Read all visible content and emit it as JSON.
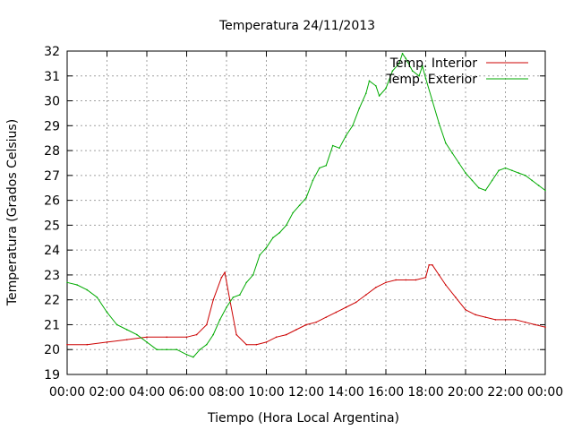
{
  "chart_data": {
    "type": "line",
    "title": "Temperatura 24/11/2013",
    "xlabel": "Tiempo (Hora Local Argentina)",
    "ylabel": "Temperatura (Grados Celsius)",
    "xlim": [
      "00:00",
      "24:00"
    ],
    "ylim": [
      19,
      32
    ],
    "grid": true,
    "legend_position": "top-right",
    "x_ticks": [
      "00:00",
      "02:00",
      "04:00",
      "06:00",
      "08:00",
      "10:00",
      "12:00",
      "14:00",
      "16:00",
      "18:00",
      "20:00",
      "22:00",
      "00:00"
    ],
    "y_ticks": [
      "19",
      "20",
      "21",
      "22",
      "23",
      "24",
      "25",
      "26",
      "27",
      "28",
      "29",
      "30",
      "31",
      "32"
    ],
    "series": [
      {
        "name": "Temp. Interior",
        "color": "#cc0000",
        "points": [
          [
            "00:00",
            20.2
          ],
          [
            "01:00",
            20.2
          ],
          [
            "02:00",
            20.3
          ],
          [
            "03:00",
            20.4
          ],
          [
            "04:00",
            20.5
          ],
          [
            "05:00",
            20.5
          ],
          [
            "06:00",
            20.5
          ],
          [
            "06:30",
            20.6
          ],
          [
            "07:00",
            21.0
          ],
          [
            "07:20",
            22.0
          ],
          [
            "07:45",
            22.9
          ],
          [
            "07:55",
            23.1
          ],
          [
            "08:10",
            22.0
          ],
          [
            "08:30",
            20.6
          ],
          [
            "09:00",
            20.2
          ],
          [
            "09:30",
            20.2
          ],
          [
            "10:00",
            20.3
          ],
          [
            "10:30",
            20.5
          ],
          [
            "11:00",
            20.6
          ],
          [
            "11:30",
            20.8
          ],
          [
            "12:00",
            21.0
          ],
          [
            "12:30",
            21.1
          ],
          [
            "13:00",
            21.3
          ],
          [
            "13:30",
            21.5
          ],
          [
            "14:00",
            21.7
          ],
          [
            "14:30",
            21.9
          ],
          [
            "15:00",
            22.2
          ],
          [
            "15:30",
            22.5
          ],
          [
            "16:00",
            22.7
          ],
          [
            "16:30",
            22.8
          ],
          [
            "17:00",
            22.8
          ],
          [
            "17:30",
            22.8
          ],
          [
            "18:00",
            22.9
          ],
          [
            "18:10",
            23.4
          ],
          [
            "18:20",
            23.4
          ],
          [
            "18:40",
            23.0
          ],
          [
            "19:00",
            22.6
          ],
          [
            "19:30",
            22.1
          ],
          [
            "20:00",
            21.6
          ],
          [
            "20:30",
            21.4
          ],
          [
            "21:00",
            21.3
          ],
          [
            "21:30",
            21.2
          ],
          [
            "22:00",
            21.2
          ],
          [
            "22:30",
            21.2
          ],
          [
            "23:00",
            21.1
          ],
          [
            "23:30",
            21.0
          ],
          [
            "24:00",
            20.9
          ]
        ]
      },
      {
        "name": "Temp. Exterior",
        "color": "#00aa00",
        "points": [
          [
            "00:00",
            22.7
          ],
          [
            "00:30",
            22.6
          ],
          [
            "01:00",
            22.4
          ],
          [
            "01:30",
            22.1
          ],
          [
            "02:00",
            21.5
          ],
          [
            "02:30",
            21.0
          ],
          [
            "03:00",
            20.8
          ],
          [
            "03:30",
            20.6
          ],
          [
            "04:00",
            20.3
          ],
          [
            "04:30",
            20.0
          ],
          [
            "05:00",
            20.0
          ],
          [
            "05:30",
            20.0
          ],
          [
            "06:00",
            19.8
          ],
          [
            "06:20",
            19.7
          ],
          [
            "06:40",
            20.0
          ],
          [
            "07:00",
            20.2
          ],
          [
            "07:20",
            20.6
          ],
          [
            "07:40",
            21.2
          ],
          [
            "08:00",
            21.7
          ],
          [
            "08:20",
            22.1
          ],
          [
            "08:40",
            22.2
          ],
          [
            "09:00",
            22.7
          ],
          [
            "09:20",
            23.0
          ],
          [
            "09:40",
            23.8
          ],
          [
            "10:00",
            24.1
          ],
          [
            "10:20",
            24.5
          ],
          [
            "10:40",
            24.7
          ],
          [
            "11:00",
            25.0
          ],
          [
            "11:20",
            25.5
          ],
          [
            "11:40",
            25.8
          ],
          [
            "12:00",
            26.1
          ],
          [
            "12:20",
            26.8
          ],
          [
            "12:40",
            27.3
          ],
          [
            "13:00",
            27.4
          ],
          [
            "13:20",
            28.2
          ],
          [
            "13:40",
            28.1
          ],
          [
            "14:00",
            28.6
          ],
          [
            "14:20",
            29.0
          ],
          [
            "14:40",
            29.7
          ],
          [
            "15:00",
            30.3
          ],
          [
            "15:10",
            30.8
          ],
          [
            "15:30",
            30.6
          ],
          [
            "15:40",
            30.2
          ],
          [
            "16:00",
            30.5
          ],
          [
            "16:20",
            31.2
          ],
          [
            "16:40",
            31.5
          ],
          [
            "16:50",
            31.9
          ],
          [
            "17:00",
            31.7
          ],
          [
            "17:20",
            31.2
          ],
          [
            "17:40",
            31.0
          ],
          [
            "17:50",
            31.4
          ],
          [
            "18:00",
            30.9
          ],
          [
            "18:20",
            30.0
          ],
          [
            "18:40",
            29.1
          ],
          [
            "19:00",
            28.3
          ],
          [
            "19:20",
            27.9
          ],
          [
            "19:40",
            27.5
          ],
          [
            "20:00",
            27.1
          ],
          [
            "20:20",
            26.8
          ],
          [
            "20:40",
            26.5
          ],
          [
            "21:00",
            26.4
          ],
          [
            "21:20",
            26.8
          ],
          [
            "21:40",
            27.2
          ],
          [
            "22:00",
            27.3
          ],
          [
            "22:20",
            27.2
          ],
          [
            "22:40",
            27.1
          ],
          [
            "23:00",
            27.0
          ],
          [
            "23:20",
            26.8
          ],
          [
            "23:40",
            26.6
          ],
          [
            "24:00",
            26.4
          ]
        ]
      }
    ]
  }
}
